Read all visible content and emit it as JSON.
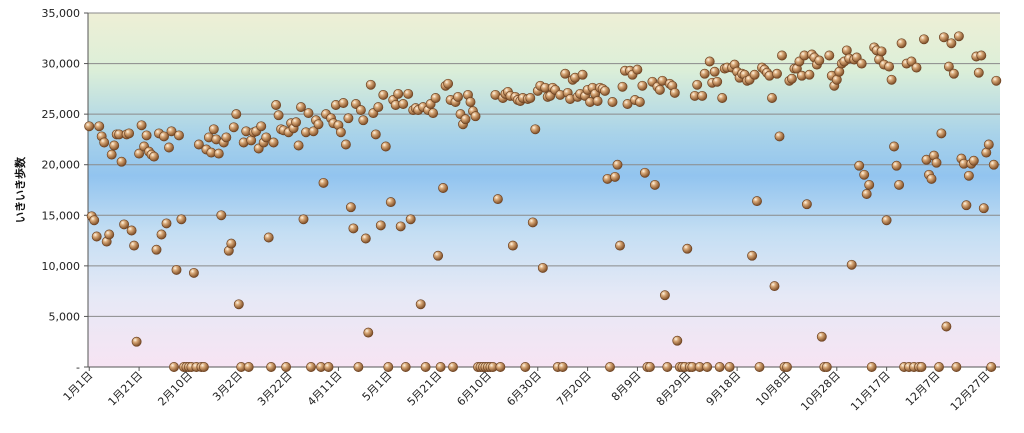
{
  "chart_data": {
    "type": "scatter",
    "ylabel": "いきいき歩数",
    "xlabel": "",
    "ylim": [
      0,
      35000
    ],
    "y_ticks": [
      0,
      5000,
      10000,
      15000,
      20000,
      25000,
      30000,
      35000
    ],
    "y_tick_labels": [
      "-",
      "5,000",
      "10,000",
      "15,000",
      "20,000",
      "25,000",
      "30,000",
      "35,000"
    ],
    "x_range_days": [
      1,
      366
    ],
    "x_tick_days": [
      1,
      21,
      41,
      61,
      81,
      101,
      121,
      141,
      161,
      181,
      201,
      221,
      241,
      261,
      281,
      301,
      321,
      341,
      361
    ],
    "x_tick_labels": [
      "1月1日",
      "1月21日",
      "2月10日",
      "3月2日",
      "3月22日",
      "4月11日",
      "5月1日",
      "5月21日",
      "6月10日",
      "6月30日",
      "7月20日",
      "8月9日",
      "8月29日",
      "9月18日",
      "10月8日",
      "10月28日",
      "11月17日",
      "12月7日",
      "12月27日"
    ],
    "grid": true,
    "legend": "none",
    "marker_color": "#c4905e",
    "points": [
      [
        1,
        23800
      ],
      [
        2,
        14900
      ],
      [
        3,
        14500
      ],
      [
        4,
        12900
      ],
      [
        5,
        23800
      ],
      [
        6,
        22800
      ],
      [
        7,
        22200
      ],
      [
        8,
        12400
      ],
      [
        9,
        13100
      ],
      [
        10,
        21000
      ],
      [
        11,
        21900
      ],
      [
        12,
        23000
      ],
      [
        13,
        23000
      ],
      [
        14,
        20300
      ],
      [
        15,
        14100
      ],
      [
        16,
        23000
      ],
      [
        17,
        23100
      ],
      [
        18,
        13500
      ],
      [
        19,
        12000
      ],
      [
        20,
        2500
      ],
      [
        21,
        21100
      ],
      [
        22,
        23900
      ],
      [
        23,
        21800
      ],
      [
        24,
        22900
      ],
      [
        25,
        21300
      ],
      [
        26,
        21000
      ],
      [
        27,
        20800
      ],
      [
        28,
        11600
      ],
      [
        29,
        23100
      ],
      [
        30,
        13100
      ],
      [
        31,
        22800
      ],
      [
        32,
        14200
      ],
      [
        33,
        21700
      ],
      [
        34,
        23300
      ],
      [
        35,
        0
      ],
      [
        36,
        9600
      ],
      [
        37,
        22900
      ],
      [
        38,
        14600
      ],
      [
        39,
        0
      ],
      [
        40,
        0
      ],
      [
        41,
        0
      ],
      [
        42,
        0
      ],
      [
        43,
        9300
      ],
      [
        44,
        0
      ],
      [
        45,
        22000
      ],
      [
        46,
        0
      ],
      [
        47,
        0
      ],
      [
        48,
        21500
      ],
      [
        49,
        22700
      ],
      [
        50,
        21200
      ],
      [
        51,
        23500
      ],
      [
        52,
        22500
      ],
      [
        53,
        21100
      ],
      [
        54,
        15000
      ],
      [
        55,
        22200
      ],
      [
        56,
        22700
      ],
      [
        57,
        11500
      ],
      [
        58,
        12200
      ],
      [
        59,
        23700
      ],
      [
        60,
        25000
      ],
      [
        61,
        6200
      ],
      [
        62,
        0
      ],
      [
        63,
        22200
      ],
      [
        64,
        23300
      ],
      [
        65,
        0
      ],
      [
        66,
        22400
      ],
      [
        67,
        23200
      ],
      [
        68,
        23300
      ],
      [
        69,
        21600
      ],
      [
        70,
        23800
      ],
      [
        71,
        22200
      ],
      [
        72,
        22700
      ],
      [
        73,
        12800
      ],
      [
        74,
        0
      ],
      [
        75,
        22200
      ],
      [
        76,
        25900
      ],
      [
        77,
        24900
      ],
      [
        78,
        23500
      ],
      [
        79,
        23400
      ],
      [
        80,
        0
      ],
      [
        81,
        23200
      ],
      [
        82,
        24100
      ],
      [
        83,
        23600
      ],
      [
        84,
        24200
      ],
      [
        85,
        21900
      ],
      [
        86,
        25700
      ],
      [
        87,
        14600
      ],
      [
        88,
        23200
      ],
      [
        89,
        25100
      ],
      [
        90,
        0
      ],
      [
        91,
        23300
      ],
      [
        92,
        24400
      ],
      [
        93,
        24000
      ],
      [
        94,
        0
      ],
      [
        95,
        18200
      ],
      [
        96,
        25000
      ],
      [
        97,
        0
      ],
      [
        98,
        24600
      ],
      [
        99,
        24100
      ],
      [
        100,
        25900
      ],
      [
        101,
        23900
      ],
      [
        102,
        23200
      ],
      [
        103,
        26100
      ],
      [
        104,
        22000
      ],
      [
        105,
        24600
      ],
      [
        106,
        15800
      ],
      [
        107,
        13700
      ],
      [
        108,
        26000
      ],
      [
        109,
        0
      ],
      [
        110,
        25400
      ],
      [
        111,
        24400
      ],
      [
        112,
        12700
      ],
      [
        113,
        3400
      ],
      [
        114,
        27900
      ],
      [
        115,
        25100
      ],
      [
        116,
        23000
      ],
      [
        117,
        25700
      ],
      [
        118,
        14000
      ],
      [
        119,
        26900
      ],
      [
        120,
        21800
      ],
      [
        121,
        0
      ],
      [
        122,
        16300
      ],
      [
        123,
        26400
      ],
      [
        124,
        25900
      ],
      [
        125,
        27000
      ],
      [
        126,
        13900
      ],
      [
        127,
        26000
      ],
      [
        128,
        0
      ],
      [
        129,
        27000
      ],
      [
        130,
        14600
      ],
      [
        131,
        25400
      ],
      [
        132,
        25600
      ],
      [
        133,
        25400
      ],
      [
        134,
        6200
      ],
      [
        135,
        25700
      ],
      [
        136,
        0
      ],
      [
        137,
        25400
      ],
      [
        138,
        26000
      ],
      [
        139,
        25100
      ],
      [
        140,
        26600
      ],
      [
        141,
        11000
      ],
      [
        142,
        0
      ],
      [
        143,
        17700
      ],
      [
        144,
        27800
      ],
      [
        145,
        28000
      ],
      [
        146,
        26400
      ],
      [
        147,
        0
      ],
      [
        148,
        26200
      ],
      [
        149,
        26700
      ],
      [
        150,
        25000
      ],
      [
        151,
        24000
      ],
      [
        152,
        24500
      ],
      [
        153,
        26900
      ],
      [
        154,
        26200
      ],
      [
        155,
        25300
      ],
      [
        156,
        24800
      ],
      [
        157,
        0
      ],
      [
        158,
        0
      ],
      [
        159,
        0
      ],
      [
        160,
        0
      ],
      [
        161,
        0
      ],
      [
        162,
        0
      ],
      [
        163,
        0
      ],
      [
        164,
        26900
      ],
      [
        165,
        16600
      ],
      [
        166,
        0
      ],
      [
        167,
        26600
      ],
      [
        168,
        27000
      ],
      [
        169,
        27200
      ],
      [
        170,
        26800
      ],
      [
        171,
        12000
      ],
      [
        172,
        26700
      ],
      [
        173,
        26400
      ],
      [
        174,
        26300
      ],
      [
        175,
        26600
      ],
      [
        176,
        0
      ],
      [
        177,
        26500
      ],
      [
        178,
        26600
      ],
      [
        179,
        14300
      ],
      [
        180,
        23500
      ],
      [
        181,
        27300
      ],
      [
        182,
        27800
      ],
      [
        183,
        9800
      ],
      [
        184,
        27600
      ],
      [
        185,
        26700
      ],
      [
        186,
        26800
      ],
      [
        187,
        27600
      ],
      [
        188,
        27400
      ],
      [
        189,
        0
      ],
      [
        190,
        26900
      ],
      [
        191,
        0
      ],
      [
        192,
        29000
      ],
      [
        193,
        27100
      ],
      [
        194,
        26500
      ],
      [
        195,
        28400
      ],
      [
        196,
        28600
      ],
      [
        197,
        26700
      ],
      [
        198,
        27000
      ],
      [
        199,
        28900
      ],
      [
        200,
        26800
      ],
      [
        201,
        27400
      ],
      [
        202,
        26200
      ],
      [
        203,
        27600
      ],
      [
        204,
        27000
      ],
      [
        205,
        26300
      ],
      [
        206,
        27600
      ],
      [
        207,
        27500
      ],
      [
        208,
        27300
      ],
      [
        209,
        18600
      ],
      [
        210,
        0
      ],
      [
        211,
        26200
      ],
      [
        212,
        18800
      ],
      [
        213,
        20000
      ],
      [
        214,
        12000
      ],
      [
        215,
        27700
      ],
      [
        216,
        29300
      ],
      [
        217,
        26000
      ],
      [
        218,
        29300
      ],
      [
        219,
        28900
      ],
      [
        220,
        26400
      ],
      [
        221,
        29400
      ],
      [
        222,
        26200
      ],
      [
        223,
        27800
      ],
      [
        224,
        19200
      ],
      [
        225,
        0
      ],
      [
        226,
        0
      ],
      [
        227,
        28200
      ],
      [
        228,
        18000
      ],
      [
        229,
        27700
      ],
      [
        230,
        27400
      ],
      [
        231,
        28300
      ],
      [
        232,
        7100
      ],
      [
        233,
        0
      ],
      [
        234,
        28000
      ],
      [
        235,
        27800
      ],
      [
        236,
        27100
      ],
      [
        237,
        2600
      ],
      [
        238,
        0
      ],
      [
        239,
        0
      ],
      [
        240,
        0
      ],
      [
        241,
        11700
      ],
      [
        242,
        0
      ],
      [
        243,
        0
      ],
      [
        244,
        26800
      ],
      [
        245,
        27900
      ],
      [
        246,
        0
      ],
      [
        247,
        26800
      ],
      [
        248,
        29000
      ],
      [
        249,
        0
      ],
      [
        250,
        30200
      ],
      [
        251,
        28100
      ],
      [
        252,
        29200
      ],
      [
        253,
        28200
      ],
      [
        254,
        0
      ],
      [
        255,
        26600
      ],
      [
        256,
        29500
      ],
      [
        257,
        29600
      ],
      [
        258,
        0
      ],
      [
        259,
        29600
      ],
      [
        260,
        29900
      ],
      [
        261,
        29200
      ],
      [
        262,
        28600
      ],
      [
        263,
        29000
      ],
      [
        264,
        28900
      ],
      [
        265,
        28300
      ],
      [
        266,
        28400
      ],
      [
        267,
        11000
      ],
      [
        268,
        28900
      ],
      [
        269,
        16400
      ],
      [
        270,
        0
      ],
      [
        271,
        29600
      ],
      [
        272,
        29400
      ],
      [
        273,
        29100
      ],
      [
        274,
        28800
      ],
      [
        275,
        26600
      ],
      [
        276,
        8000
      ],
      [
        277,
        29000
      ],
      [
        278,
        22800
      ],
      [
        279,
        30800
      ],
      [
        280,
        0
      ],
      [
        281,
        0
      ],
      [
        282,
        28300
      ],
      [
        283,
        28500
      ],
      [
        284,
        29500
      ],
      [
        285,
        29500
      ],
      [
        286,
        30200
      ],
      [
        287,
        28800
      ],
      [
        288,
        30800
      ],
      [
        289,
        16100
      ],
      [
        290,
        28900
      ],
      [
        291,
        30900
      ],
      [
        292,
        30600
      ],
      [
        293,
        29900
      ],
      [
        294,
        30300
      ],
      [
        295,
        3000
      ],
      [
        296,
        0
      ],
      [
        297,
        0
      ],
      [
        298,
        30800
      ],
      [
        299,
        28800
      ],
      [
        300,
        27800
      ],
      [
        301,
        28400
      ],
      [
        302,
        29200
      ],
      [
        303,
        30000
      ],
      [
        304,
        30200
      ],
      [
        305,
        31300
      ],
      [
        306,
        30500
      ],
      [
        307,
        10100
      ],
      [
        308,
        30400
      ],
      [
        309,
        30600
      ],
      [
        310,
        19900
      ],
      [
        311,
        30000
      ],
      [
        312,
        19000
      ],
      [
        313,
        17100
      ],
      [
        314,
        18000
      ],
      [
        315,
        0
      ],
      [
        316,
        31600
      ],
      [
        317,
        31300
      ],
      [
        318,
        30400
      ],
      [
        319,
        31200
      ],
      [
        320,
        29900
      ],
      [
        321,
        14500
      ],
      [
        322,
        29700
      ],
      [
        323,
        28400
      ],
      [
        324,
        21800
      ],
      [
        325,
        19900
      ],
      [
        326,
        18000
      ],
      [
        327,
        32000
      ],
      [
        328,
        0
      ],
      [
        329,
        30000
      ],
      [
        330,
        0
      ],
      [
        331,
        30200
      ],
      [
        332,
        0
      ],
      [
        333,
        29600
      ],
      [
        334,
        0
      ],
      [
        335,
        0
      ],
      [
        336,
        32400
      ],
      [
        337,
        20500
      ],
      [
        338,
        19000
      ],
      [
        339,
        18600
      ],
      [
        340,
        20900
      ],
      [
        341,
        20200
      ],
      [
        342,
        0
      ],
      [
        343,
        23100
      ],
      [
        344,
        32600
      ],
      [
        345,
        4000
      ],
      [
        346,
        29700
      ],
      [
        347,
        32000
      ],
      [
        348,
        29000
      ],
      [
        349,
        0
      ],
      [
        350,
        32700
      ],
      [
        351,
        20600
      ],
      [
        352,
        20100
      ],
      [
        353,
        16000
      ],
      [
        354,
        18900
      ],
      [
        355,
        20100
      ],
      [
        356,
        20400
      ],
      [
        357,
        30700
      ],
      [
        358,
        29100
      ],
      [
        359,
        30800
      ],
      [
        360,
        15700
      ],
      [
        361,
        21200
      ],
      [
        362,
        22000
      ],
      [
        363,
        0
      ],
      [
        364,
        20000
      ],
      [
        365,
        28300
      ]
    ]
  }
}
